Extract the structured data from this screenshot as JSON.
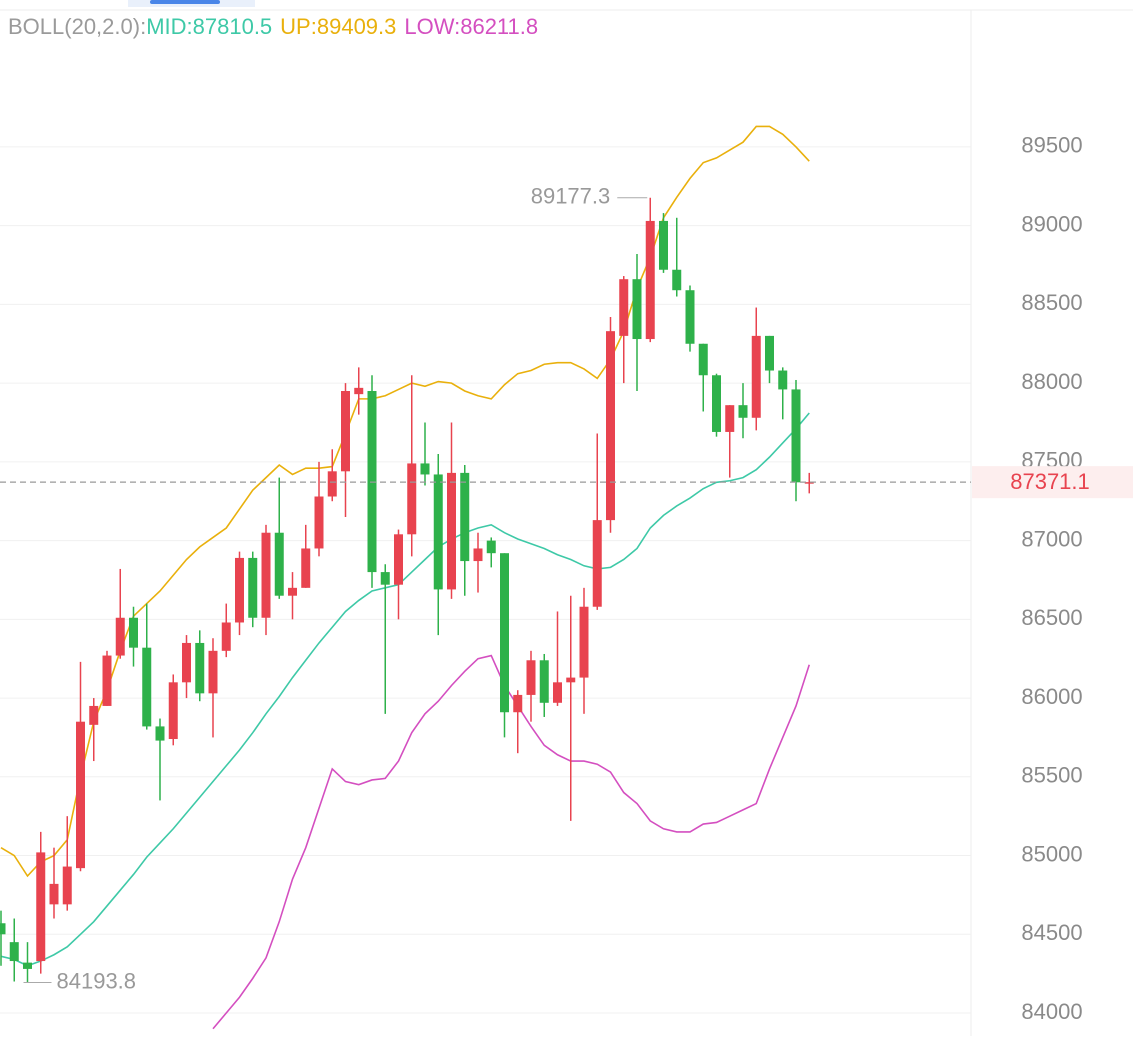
{
  "chart_data": {
    "type": "candlestick",
    "indicator": "BOLL(20,2.0):",
    "up_color": "#e8434f",
    "down_color": "#2eb14a",
    "ylim": [
      83854,
      90433
    ],
    "yticks": [
      84000,
      84500,
      85000,
      85500,
      86000,
      86500,
      87000,
      87500,
      88000,
      88500,
      89000,
      89500
    ],
    "grid": true,
    "open": [
      84570,
      84450,
      84320,
      84330,
      84690,
      84690,
      84920,
      85830,
      85950,
      86270,
      86510,
      86320,
      85820,
      85740,
      86100,
      86350,
      86030,
      86300,
      86480,
      86890,
      86510,
      87050,
      86650,
      86700,
      86950,
      87280,
      87440,
      87930,
      87950,
      86800,
      86720,
      87040,
      87490,
      87420,
      86690,
      87430,
      86870,
      87000,
      86920,
      85910,
      86020,
      86240,
      85970,
      86100,
      86130,
      86580,
      87130,
      88300,
      88660,
      88280,
      89030,
      88720,
      88590,
      88250,
      88050,
      87690,
      87860,
      87780,
      88300,
      88080,
      87960,
      87370
    ],
    "high": [
      84650,
      84600,
      84450,
      85150,
      85050,
      85250,
      86230,
      86000,
      86300,
      86820,
      86580,
      86600,
      85870,
      86150,
      86400,
      86430,
      86380,
      86600,
      86930,
      86930,
      87100,
      87400,
      86800,
      87100,
      87500,
      87580,
      88000,
      88100,
      88050,
      86850,
      87070,
      88050,
      87750,
      87550,
      87750,
      87480,
      87050,
      87020,
      86920,
      86050,
      86300,
      86280,
      86550,
      86650,
      86700,
      87680,
      88420,
      88680,
      88820,
      89177.3,
      89080,
      89050,
      88620,
      88250,
      88060,
      87860,
      88000,
      88480,
      88300,
      88100,
      88020,
      87430
    ],
    "low": [
      84300,
      84200,
      84193.8,
      84250,
      84600,
      84650,
      84900,
      85600,
      85950,
      86250,
      86200,
      85800,
      85350,
      85700,
      86000,
      85980,
      85750,
      86260,
      86400,
      86450,
      86400,
      86630,
      86500,
      86700,
      86900,
      87250,
      87150,
      87800,
      86700,
      85900,
      86500,
      86900,
      87350,
      86400,
      86630,
      86650,
      86670,
      86830,
      85750,
      85650,
      85850,
      85880,
      85950,
      85220,
      85900,
      86560,
      87050,
      88000,
      87950,
      88260,
      88700,
      88550,
      88200,
      87820,
      87660,
      87400,
      87650,
      87700,
      88000,
      87770,
      87250,
      87300
    ],
    "close": [
      84500,
      84330,
      84280,
      85020,
      84820,
      84930,
      85850,
      85950,
      86270,
      86510,
      86320,
      85820,
      85730,
      86100,
      86350,
      86030,
      86300,
      86480,
      86890,
      86510,
      87050,
      86650,
      86700,
      86950,
      87280,
      87440,
      87950,
      87970,
      86800,
      86720,
      87040,
      87490,
      87420,
      86690,
      87430,
      86870,
      86950,
      86920,
      85910,
      86020,
      86240,
      85970,
      86100,
      86130,
      86580,
      87130,
      88330,
      88660,
      88280,
      89030,
      88720,
      88590,
      88250,
      88050,
      87690,
      87860,
      87780,
      88300,
      88080,
      87960,
      87370,
      87371.1
    ],
    "series": [
      {
        "name": "MID:",
        "color": "#3ec9a7",
        "values": [
          84360,
          84340,
          84300,
          84330,
          84370,
          84420,
          84500,
          84580,
          84680,
          84780,
          84880,
          84990,
          85080,
          85170,
          85270,
          85370,
          85470,
          85570,
          85670,
          85780,
          85900,
          86010,
          86130,
          86240,
          86350,
          86450,
          86550,
          86620,
          86680,
          86700,
          86720,
          86800,
          86880,
          86960,
          87010,
          87050,
          87080,
          87100,
          87050,
          87010,
          86980,
          86950,
          86910,
          86880,
          86840,
          86820,
          86830,
          86880,
          86950,
          87080,
          87160,
          87220,
          87270,
          87330,
          87370,
          87380,
          87400,
          87450,
          87530,
          87620,
          87710,
          87810.5
        ]
      },
      {
        "name": "UP:",
        "color": "#e9b00c",
        "values": [
          85050,
          85000,
          84870,
          84960,
          85000,
          85100,
          85500,
          85850,
          86050,
          86300,
          86520,
          86600,
          86680,
          86780,
          86880,
          86960,
          87020,
          87080,
          87200,
          87320,
          87400,
          87480,
          87420,
          87460,
          87460,
          87470,
          87680,
          87900,
          87900,
          87920,
          87960,
          88000,
          87980,
          88010,
          88000,
          87950,
          87920,
          87900,
          87990,
          88060,
          88080,
          88120,
          88130,
          88130,
          88090,
          88030,
          88150,
          88330,
          88600,
          88800,
          89050,
          89180,
          89300,
          89400,
          89430,
          89480,
          89530,
          89630,
          89630,
          89580,
          89500,
          89409.3
        ]
      },
      {
        "name": "LOW:",
        "color": "#d44fc0",
        "values": [
          null,
          null,
          null,
          null,
          null,
          null,
          null,
          null,
          null,
          null,
          null,
          null,
          null,
          null,
          null,
          null,
          83900,
          84000,
          84100,
          84220,
          84350,
          84580,
          84850,
          85050,
          85300,
          85550,
          85470,
          85450,
          85480,
          85490,
          85600,
          85780,
          85900,
          85980,
          86080,
          86170,
          86250,
          86270,
          86080,
          85950,
          85820,
          85700,
          85640,
          85600,
          85600,
          85580,
          85530,
          85400,
          85330,
          85220,
          85170,
          85150,
          85150,
          85200,
          85210,
          85250,
          85290,
          85330,
          85550,
          85750,
          85950,
          86211.8
        ]
      }
    ]
  }
}
